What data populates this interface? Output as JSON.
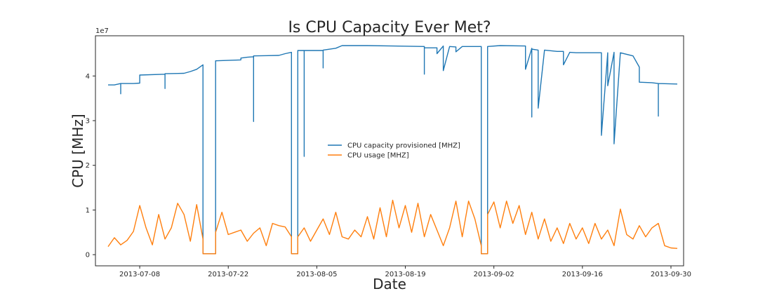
{
  "chart_data": {
    "type": "line",
    "title": "Is CPU Capacity Ever Met?",
    "xlabel": "Date",
    "ylabel": "CPU [MHz]",
    "y_offset_label": "1e7",
    "xlim": [
      "2013-07-01",
      "2013-10-02"
    ],
    "ylim": [
      -0.25,
      4.9
    ],
    "y_ticks": [
      0,
      1,
      2,
      3,
      4
    ],
    "x_ticks": [
      "2013-07-08",
      "2013-07-22",
      "2013-08-05",
      "2013-08-19",
      "2013-09-02",
      "2013-09-16",
      "2013-09-30"
    ],
    "grid": false,
    "legend": "center",
    "colors": {
      "capacity": "#1f77b4",
      "usage": "#ff7f0e"
    },
    "series": [
      {
        "name": "CPU capacity provisioned [MHZ]",
        "color": "#1f77b4",
        "points": [
          [
            "2013-07-03",
            3.8
          ],
          [
            "2013-07-04",
            3.8
          ],
          [
            "2013-07-05",
            3.83
          ],
          [
            "2013-07-05",
            3.6
          ],
          [
            "2013-07-05",
            3.83
          ],
          [
            "2013-07-07",
            3.83
          ],
          [
            "2013-07-08",
            3.84
          ],
          [
            "2013-07-08",
            4.02
          ],
          [
            "2013-07-12",
            4.04
          ],
          [
            "2013-07-12",
            3.72
          ],
          [
            "2013-07-12",
            4.05
          ],
          [
            "2013-07-15",
            4.06
          ],
          [
            "2013-07-16",
            4.1
          ],
          [
            "2013-07-17",
            4.15
          ],
          [
            "2013-07-18",
            4.25
          ],
          [
            "2013-07-18",
            0.02
          ],
          [
            "2013-07-20",
            0.02
          ],
          [
            "2013-07-20",
            4.34
          ],
          [
            "2013-07-24",
            4.36
          ],
          [
            "2013-07-24",
            4.4
          ],
          [
            "2013-07-25",
            4.42
          ],
          [
            "2013-07-26",
            4.43
          ],
          [
            "2013-07-26",
            2.98
          ],
          [
            "2013-07-26",
            4.45
          ],
          [
            "2013-07-30",
            4.46
          ],
          [
            "2013-07-31",
            4.5
          ],
          [
            "2013-08-01",
            4.53
          ],
          [
            "2013-08-01",
            0.02
          ],
          [
            "2013-08-02",
            0.02
          ],
          [
            "2013-08-02",
            4.57
          ],
          [
            "2013-08-03",
            4.57
          ],
          [
            "2013-08-03",
            2.2
          ],
          [
            "2013-08-03",
            4.57
          ],
          [
            "2013-08-06",
            4.57
          ],
          [
            "2013-08-06",
            4.18
          ],
          [
            "2013-08-06",
            4.58
          ],
          [
            "2013-08-08",
            4.62
          ],
          [
            "2013-08-09",
            4.68
          ],
          [
            "2013-08-13",
            4.68
          ],
          [
            "2013-08-17",
            4.67
          ],
          [
            "2013-08-22",
            4.66
          ],
          [
            "2013-08-22",
            4.04
          ],
          [
            "2013-08-22",
            4.63
          ],
          [
            "2013-08-24",
            4.63
          ],
          [
            "2013-08-24",
            4.5
          ],
          [
            "2013-08-25",
            4.67
          ],
          [
            "2013-08-25",
            4.12
          ],
          [
            "2013-08-26",
            4.66
          ],
          [
            "2013-08-27",
            4.65
          ],
          [
            "2013-08-27",
            4.54
          ],
          [
            "2013-08-28",
            4.66
          ],
          [
            "2013-08-31",
            4.66
          ],
          [
            "2013-08-31",
            0.02
          ],
          [
            "2013-09-01",
            0.02
          ],
          [
            "2013-09-01",
            1.2
          ],
          [
            "2013-09-01",
            4.66
          ],
          [
            "2013-09-03",
            4.68
          ],
          [
            "2013-09-07",
            4.67
          ],
          [
            "2013-09-07",
            4.63
          ],
          [
            "2013-09-07",
            4.15
          ],
          [
            "2013-09-08",
            4.62
          ],
          [
            "2013-09-08",
            3.08
          ],
          [
            "2013-09-08",
            4.6
          ],
          [
            "2013-09-09",
            4.58
          ],
          [
            "2013-09-09",
            3.28
          ],
          [
            "2013-09-10",
            4.58
          ],
          [
            "2013-09-12",
            4.55
          ],
          [
            "2013-09-13",
            4.55
          ],
          [
            "2013-09-13",
            4.25
          ],
          [
            "2013-09-14",
            4.53
          ],
          [
            "2013-09-15",
            4.52
          ],
          [
            "2013-09-19",
            4.52
          ],
          [
            "2013-09-19",
            2.67
          ],
          [
            "2013-09-20",
            4.52
          ],
          [
            "2013-09-20",
            3.78
          ],
          [
            "2013-09-21",
            4.53
          ],
          [
            "2013-09-21",
            2.48
          ],
          [
            "2013-09-22",
            4.52
          ],
          [
            "2013-09-24",
            4.45
          ],
          [
            "2013-09-25",
            4.2
          ],
          [
            "2013-09-25",
            3.86
          ],
          [
            "2013-09-27",
            3.85
          ],
          [
            "2013-09-28",
            3.83
          ],
          [
            "2013-09-28",
            3.1
          ],
          [
            "2013-09-28",
            3.83
          ],
          [
            "2013-10-01",
            3.82
          ]
        ]
      },
      {
        "name": "CPU usage [MHZ]",
        "color": "#ff7f0e",
        "points": [
          [
            "2013-07-03",
            0.18
          ],
          [
            "2013-07-04",
            0.38
          ],
          [
            "2013-07-05",
            0.22
          ],
          [
            "2013-07-06",
            0.32
          ],
          [
            "2013-07-07",
            0.52
          ],
          [
            "2013-07-08",
            1.1
          ],
          [
            "2013-07-09",
            0.6
          ],
          [
            "2013-07-10",
            0.22
          ],
          [
            "2013-07-11",
            0.9
          ],
          [
            "2013-07-12",
            0.35
          ],
          [
            "2013-07-13",
            0.6
          ],
          [
            "2013-07-14",
            1.15
          ],
          [
            "2013-07-15",
            0.9
          ],
          [
            "2013-07-16",
            0.3
          ],
          [
            "2013-07-17",
            1.12
          ],
          [
            "2013-07-18",
            0.35
          ],
          [
            "2013-07-18",
            0.02
          ],
          [
            "2013-07-20",
            0.02
          ],
          [
            "2013-07-20",
            0.5
          ],
          [
            "2013-07-21",
            0.95
          ],
          [
            "2013-07-22",
            0.45
          ],
          [
            "2013-07-23",
            0.5
          ],
          [
            "2013-07-24",
            0.55
          ],
          [
            "2013-07-25",
            0.3
          ],
          [
            "2013-07-26",
            0.48
          ],
          [
            "2013-07-27",
            0.6
          ],
          [
            "2013-07-28",
            0.2
          ],
          [
            "2013-07-29",
            0.7
          ],
          [
            "2013-07-30",
            0.65
          ],
          [
            "2013-07-31",
            0.62
          ],
          [
            "2013-08-01",
            0.4
          ],
          [
            "2013-08-01",
            0.02
          ],
          [
            "2013-08-02",
            0.02
          ],
          [
            "2013-08-02",
            0.4
          ],
          [
            "2013-08-03",
            0.6
          ],
          [
            "2013-08-04",
            0.3
          ],
          [
            "2013-08-05",
            0.55
          ],
          [
            "2013-08-06",
            0.8
          ],
          [
            "2013-08-07",
            0.45
          ],
          [
            "2013-08-08",
            0.95
          ],
          [
            "2013-08-09",
            0.4
          ],
          [
            "2013-08-10",
            0.35
          ],
          [
            "2013-08-11",
            0.55
          ],
          [
            "2013-08-12",
            0.4
          ],
          [
            "2013-08-13",
            0.85
          ],
          [
            "2013-08-14",
            0.35
          ],
          [
            "2013-08-15",
            1.05
          ],
          [
            "2013-08-16",
            0.4
          ],
          [
            "2013-08-17",
            1.22
          ],
          [
            "2013-08-18",
            0.6
          ],
          [
            "2013-08-19",
            1.1
          ],
          [
            "2013-08-20",
            0.5
          ],
          [
            "2013-08-21",
            1.15
          ],
          [
            "2013-08-22",
            0.4
          ],
          [
            "2013-08-23",
            0.9
          ],
          [
            "2013-08-24",
            0.55
          ],
          [
            "2013-08-25",
            0.2
          ],
          [
            "2013-08-26",
            0.6
          ],
          [
            "2013-08-27",
            1.2
          ],
          [
            "2013-08-28",
            0.4
          ],
          [
            "2013-08-29",
            1.2
          ],
          [
            "2013-08-30",
            0.8
          ],
          [
            "2013-08-31",
            0.2
          ],
          [
            "2013-08-31",
            0.02
          ],
          [
            "2013-09-01",
            0.02
          ],
          [
            "2013-09-01",
            0.9
          ],
          [
            "2013-09-02",
            1.18
          ],
          [
            "2013-09-03",
            0.6
          ],
          [
            "2013-09-04",
            1.2
          ],
          [
            "2013-09-05",
            0.7
          ],
          [
            "2013-09-06",
            1.1
          ],
          [
            "2013-09-07",
            0.45
          ],
          [
            "2013-09-08",
            0.95
          ],
          [
            "2013-09-09",
            0.35
          ],
          [
            "2013-09-10",
            0.8
          ],
          [
            "2013-09-11",
            0.3
          ],
          [
            "2013-09-12",
            0.6
          ],
          [
            "2013-09-13",
            0.25
          ],
          [
            "2013-09-14",
            0.7
          ],
          [
            "2013-09-15",
            0.35
          ],
          [
            "2013-09-16",
            0.6
          ],
          [
            "2013-09-17",
            0.25
          ],
          [
            "2013-09-18",
            0.7
          ],
          [
            "2013-09-19",
            0.35
          ],
          [
            "2013-09-20",
            0.55
          ],
          [
            "2013-09-21",
            0.2
          ],
          [
            "2013-09-22",
            1.02
          ],
          [
            "2013-09-23",
            0.45
          ],
          [
            "2013-09-24",
            0.35
          ],
          [
            "2013-09-25",
            0.65
          ],
          [
            "2013-09-26",
            0.4
          ],
          [
            "2013-09-27",
            0.6
          ],
          [
            "2013-09-28",
            0.7
          ],
          [
            "2013-09-29",
            0.2
          ],
          [
            "2013-09-30",
            0.15
          ],
          [
            "2013-10-01",
            0.14
          ]
        ]
      }
    ]
  }
}
